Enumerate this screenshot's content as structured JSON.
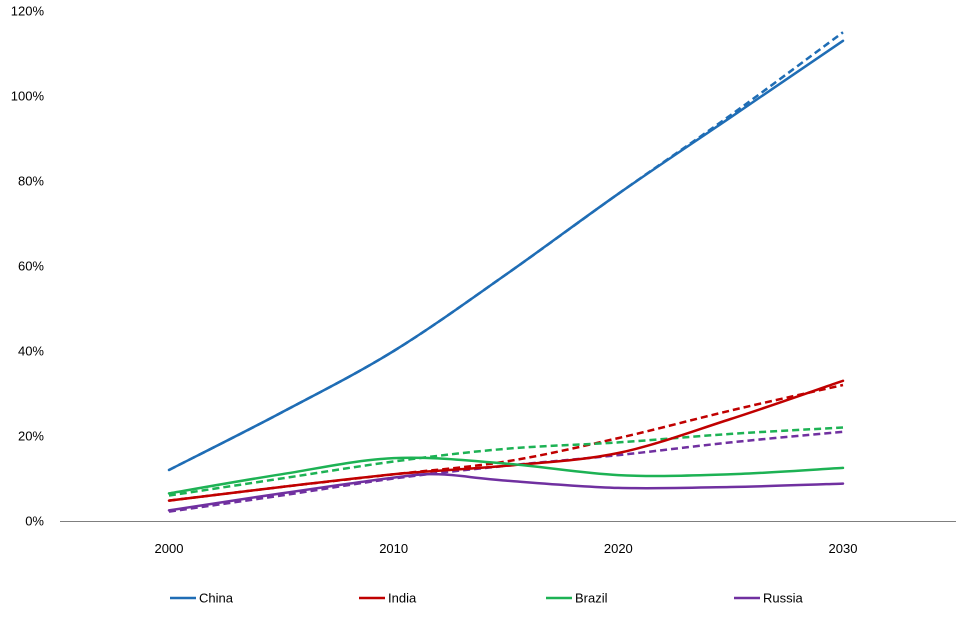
{
  "chart_data": {
    "type": "line",
    "title": "",
    "xlabel": "",
    "ylabel": "",
    "x_ticks": [
      "2000",
      "2010",
      "2020",
      "2030"
    ],
    "y_ticks": [
      "0%",
      "20%",
      "40%",
      "60%",
      "80%",
      "100%",
      "120%"
    ],
    "xlim": [
      1996,
      2035
    ],
    "ylim": [
      0,
      120
    ],
    "grid": false,
    "legend_position": "bottom",
    "series": [
      {
        "name": "China",
        "color": "#1f6db5",
        "solid": [
          [
            2000,
            12
          ],
          [
            2005,
            25.5
          ],
          [
            2010,
            40
          ],
          [
            2015,
            58
          ],
          [
            2020,
            77
          ],
          [
            2025,
            95
          ],
          [
            2030,
            113
          ]
        ],
        "dashed": [
          [
            2000,
            12
          ],
          [
            2005,
            25.5
          ],
          [
            2010,
            40
          ],
          [
            2015,
            58
          ],
          [
            2020,
            77
          ],
          [
            2025,
            95.5
          ],
          [
            2030,
            115
          ]
        ]
      },
      {
        "name": "India",
        "color": "#c00000",
        "solid": [
          [
            2000,
            4.8
          ],
          [
            2005,
            8
          ],
          [
            2010,
            11
          ],
          [
            2015,
            13
          ],
          [
            2020,
            16
          ],
          [
            2025,
            24
          ],
          [
            2030,
            33
          ]
        ],
        "dashed": [
          [
            2000,
            4.8
          ],
          [
            2005,
            8
          ],
          [
            2010,
            11
          ],
          [
            2015,
            14
          ],
          [
            2020,
            19.5
          ],
          [
            2025,
            26
          ],
          [
            2030,
            32
          ]
        ]
      },
      {
        "name": "Brazil",
        "color": "#1db254",
        "solid": [
          [
            2000,
            6.5
          ],
          [
            2005,
            11
          ],
          [
            2010,
            14.8
          ],
          [
            2015,
            13.5
          ],
          [
            2020,
            10.8
          ],
          [
            2025,
            11
          ],
          [
            2030,
            12.5
          ]
        ],
        "dashed": [
          [
            2000,
            6
          ],
          [
            2005,
            10
          ],
          [
            2010,
            14
          ],
          [
            2015,
            17
          ],
          [
            2020,
            18.5
          ],
          [
            2025,
            20.5
          ],
          [
            2030,
            22
          ]
        ]
      },
      {
        "name": "Russia",
        "color": "#7030a0",
        "solid": [
          [
            2000,
            2.5
          ],
          [
            2005,
            6.5
          ],
          [
            2010,
            10.2
          ],
          [
            2012,
            11
          ],
          [
            2015,
            9.5
          ],
          [
            2020,
            7.8
          ],
          [
            2025,
            8
          ],
          [
            2030,
            8.8
          ]
        ],
        "dashed": [
          [
            2000,
            2.2
          ],
          [
            2005,
            6
          ],
          [
            2010,
            10
          ],
          [
            2015,
            13
          ],
          [
            2020,
            15.5
          ],
          [
            2025,
            18.5
          ],
          [
            2030,
            21
          ]
        ]
      }
    ]
  }
}
